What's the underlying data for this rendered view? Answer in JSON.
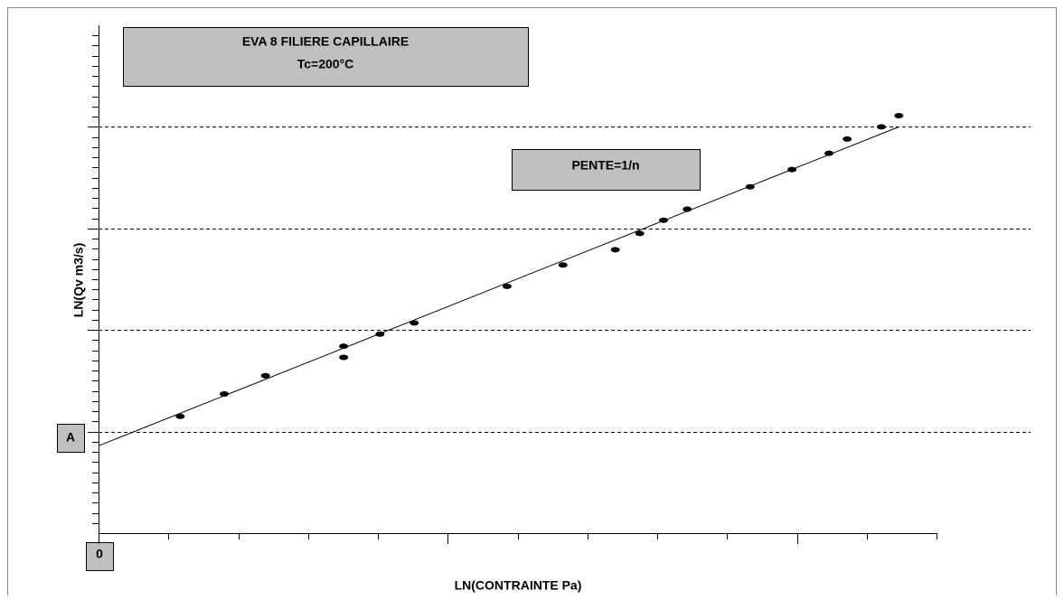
{
  "chart_data": {
    "type": "scatter",
    "title": [
      "EVA 8 FILIERE CAPILLAIRE",
      "Tc=200°C"
    ],
    "xlabel": "LN(CONTRAINTE Pa)",
    "ylabel": "LN(Qv m3/s)",
    "annotations": [
      "PENTE=1/n",
      "A",
      "0"
    ],
    "x": [
      1.17,
      1.8,
      2.39,
      3.51,
      3.51,
      4.03,
      4.52,
      5.85,
      6.65,
      7.4,
      7.75,
      8.09,
      8.43,
      9.33,
      9.93,
      10.46,
      10.72,
      11.21,
      11.46
    ],
    "values": [
      11.5,
      13.7,
      15.5,
      18.4,
      17.3,
      19.6,
      20.7,
      24.3,
      26.4,
      27.9,
      29.5,
      30.8,
      31.9,
      34.1,
      35.8,
      37.4,
      38.8,
      40.0,
      41.1
    ],
    "color": "#000000",
    "fit": {
      "x": [
        0,
        11.46
      ],
      "values": [
        8.6,
        40.0
      ],
      "color": "#000000"
    },
    "xlim": [
      0,
      12
    ],
    "ylim": [
      0,
      50
    ],
    "xticks_major": [
      0,
      5,
      10
    ],
    "xticks_minor": [
      1,
      2,
      3,
      4,
      6,
      7,
      8,
      9,
      11,
      12
    ],
    "yticks": [
      10,
      20,
      30,
      40
    ],
    "yticks_minor": [
      1,
      2,
      3,
      4,
      5,
      6,
      7,
      8,
      9,
      11,
      12,
      13,
      14,
      15,
      16,
      17,
      18,
      19,
      21,
      22,
      23,
      24,
      25,
      26,
      27,
      28,
      29,
      31,
      32,
      33,
      34,
      35,
      36,
      37,
      38,
      39,
      41,
      42,
      43,
      44,
      45,
      46,
      47,
      48,
      49
    ],
    "grid": true
  }
}
